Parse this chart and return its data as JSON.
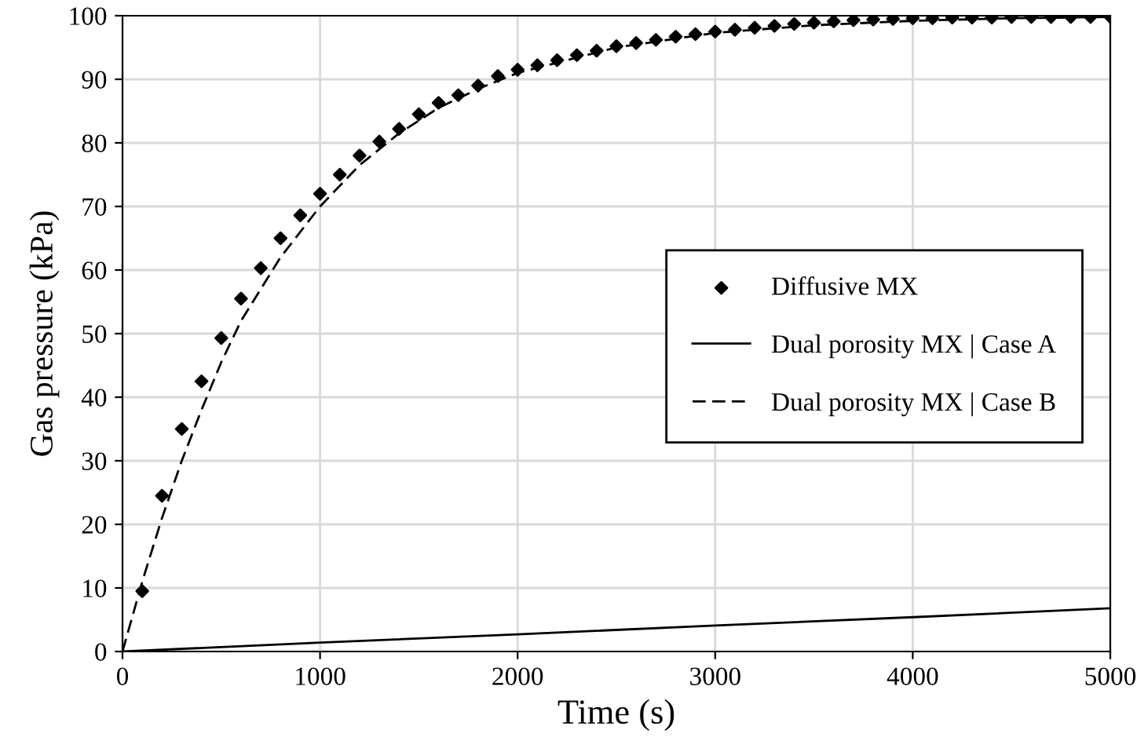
{
  "chart_data": {
    "type": "line",
    "xlabel": "Time (s)",
    "ylabel": "Gas pressure (kPa)",
    "xlim": [
      0,
      5000
    ],
    "ylim": [
      0,
      100
    ],
    "xticks": [
      0,
      1000,
      2000,
      3000,
      4000,
      5000
    ],
    "yticks": [
      0,
      10,
      20,
      30,
      40,
      50,
      60,
      70,
      80,
      90,
      100
    ],
    "grid": true,
    "legend": "right",
    "series": [
      {
        "name": "Diffusive MX",
        "type": "scatter",
        "marker": "diamond",
        "color": "#000000",
        "x": [
          100,
          200,
          300,
          400,
          500,
          600,
          700,
          800,
          900,
          1000,
          1100,
          1200,
          1300,
          1400,
          1500,
          1600,
          1700,
          1800,
          1900,
          2000,
          2100,
          2200,
          2300,
          2400,
          2500,
          2600,
          2700,
          2800,
          2900,
          3000,
          3100,
          3200,
          3300,
          3400,
          3500,
          3600,
          3700,
          3800,
          3900,
          4000,
          4100,
          4200,
          4300,
          4400,
          4500,
          4600,
          4700,
          4800,
          4900,
          5000
        ],
        "values": [
          9.5,
          24.5,
          35,
          42.5,
          49.3,
          55.5,
          60.3,
          65,
          68.6,
          72,
          75,
          78,
          80.2,
          82.2,
          84.5,
          86.3,
          87.5,
          89,
          90.5,
          91.5,
          92.2,
          93,
          93.8,
          94.5,
          95.2,
          95.7,
          96.2,
          96.7,
          97.1,
          97.5,
          97.8,
          98.1,
          98.4,
          98.7,
          98.9,
          99.1,
          99.3,
          99.4,
          99.5,
          99.6,
          99.6,
          99.7,
          99.7,
          99.7,
          99.8,
          99.8,
          99.8,
          99.8,
          99.8,
          99.8
        ]
      },
      {
        "name": "Dual porosity MX | Case A",
        "line_style": "solid",
        "marker": "none",
        "color": "#000000",
        "x": [
          0,
          1000,
          2000,
          3000,
          4000,
          5000
        ],
        "values": [
          0,
          1.4,
          2.7,
          4.1,
          5.4,
          6.8
        ]
      },
      {
        "name": "Dual porosity MX | Case B",
        "line_style": "dashed",
        "marker": "none",
        "color": "#000000",
        "x": [
          0,
          100,
          200,
          300,
          400,
          500,
          600,
          800,
          1000,
          1200,
          1400,
          1600,
          1800,
          2000,
          2500,
          3000,
          3500,
          4000,
          4500,
          5000
        ],
        "values": [
          0,
          11,
          21,
          30,
          38,
          45.5,
          52,
          62,
          70,
          76.5,
          81.5,
          85.5,
          88.5,
          91,
          95,
          97.3,
          98.5,
          99.2,
          99.6,
          99.8
        ]
      }
    ]
  }
}
